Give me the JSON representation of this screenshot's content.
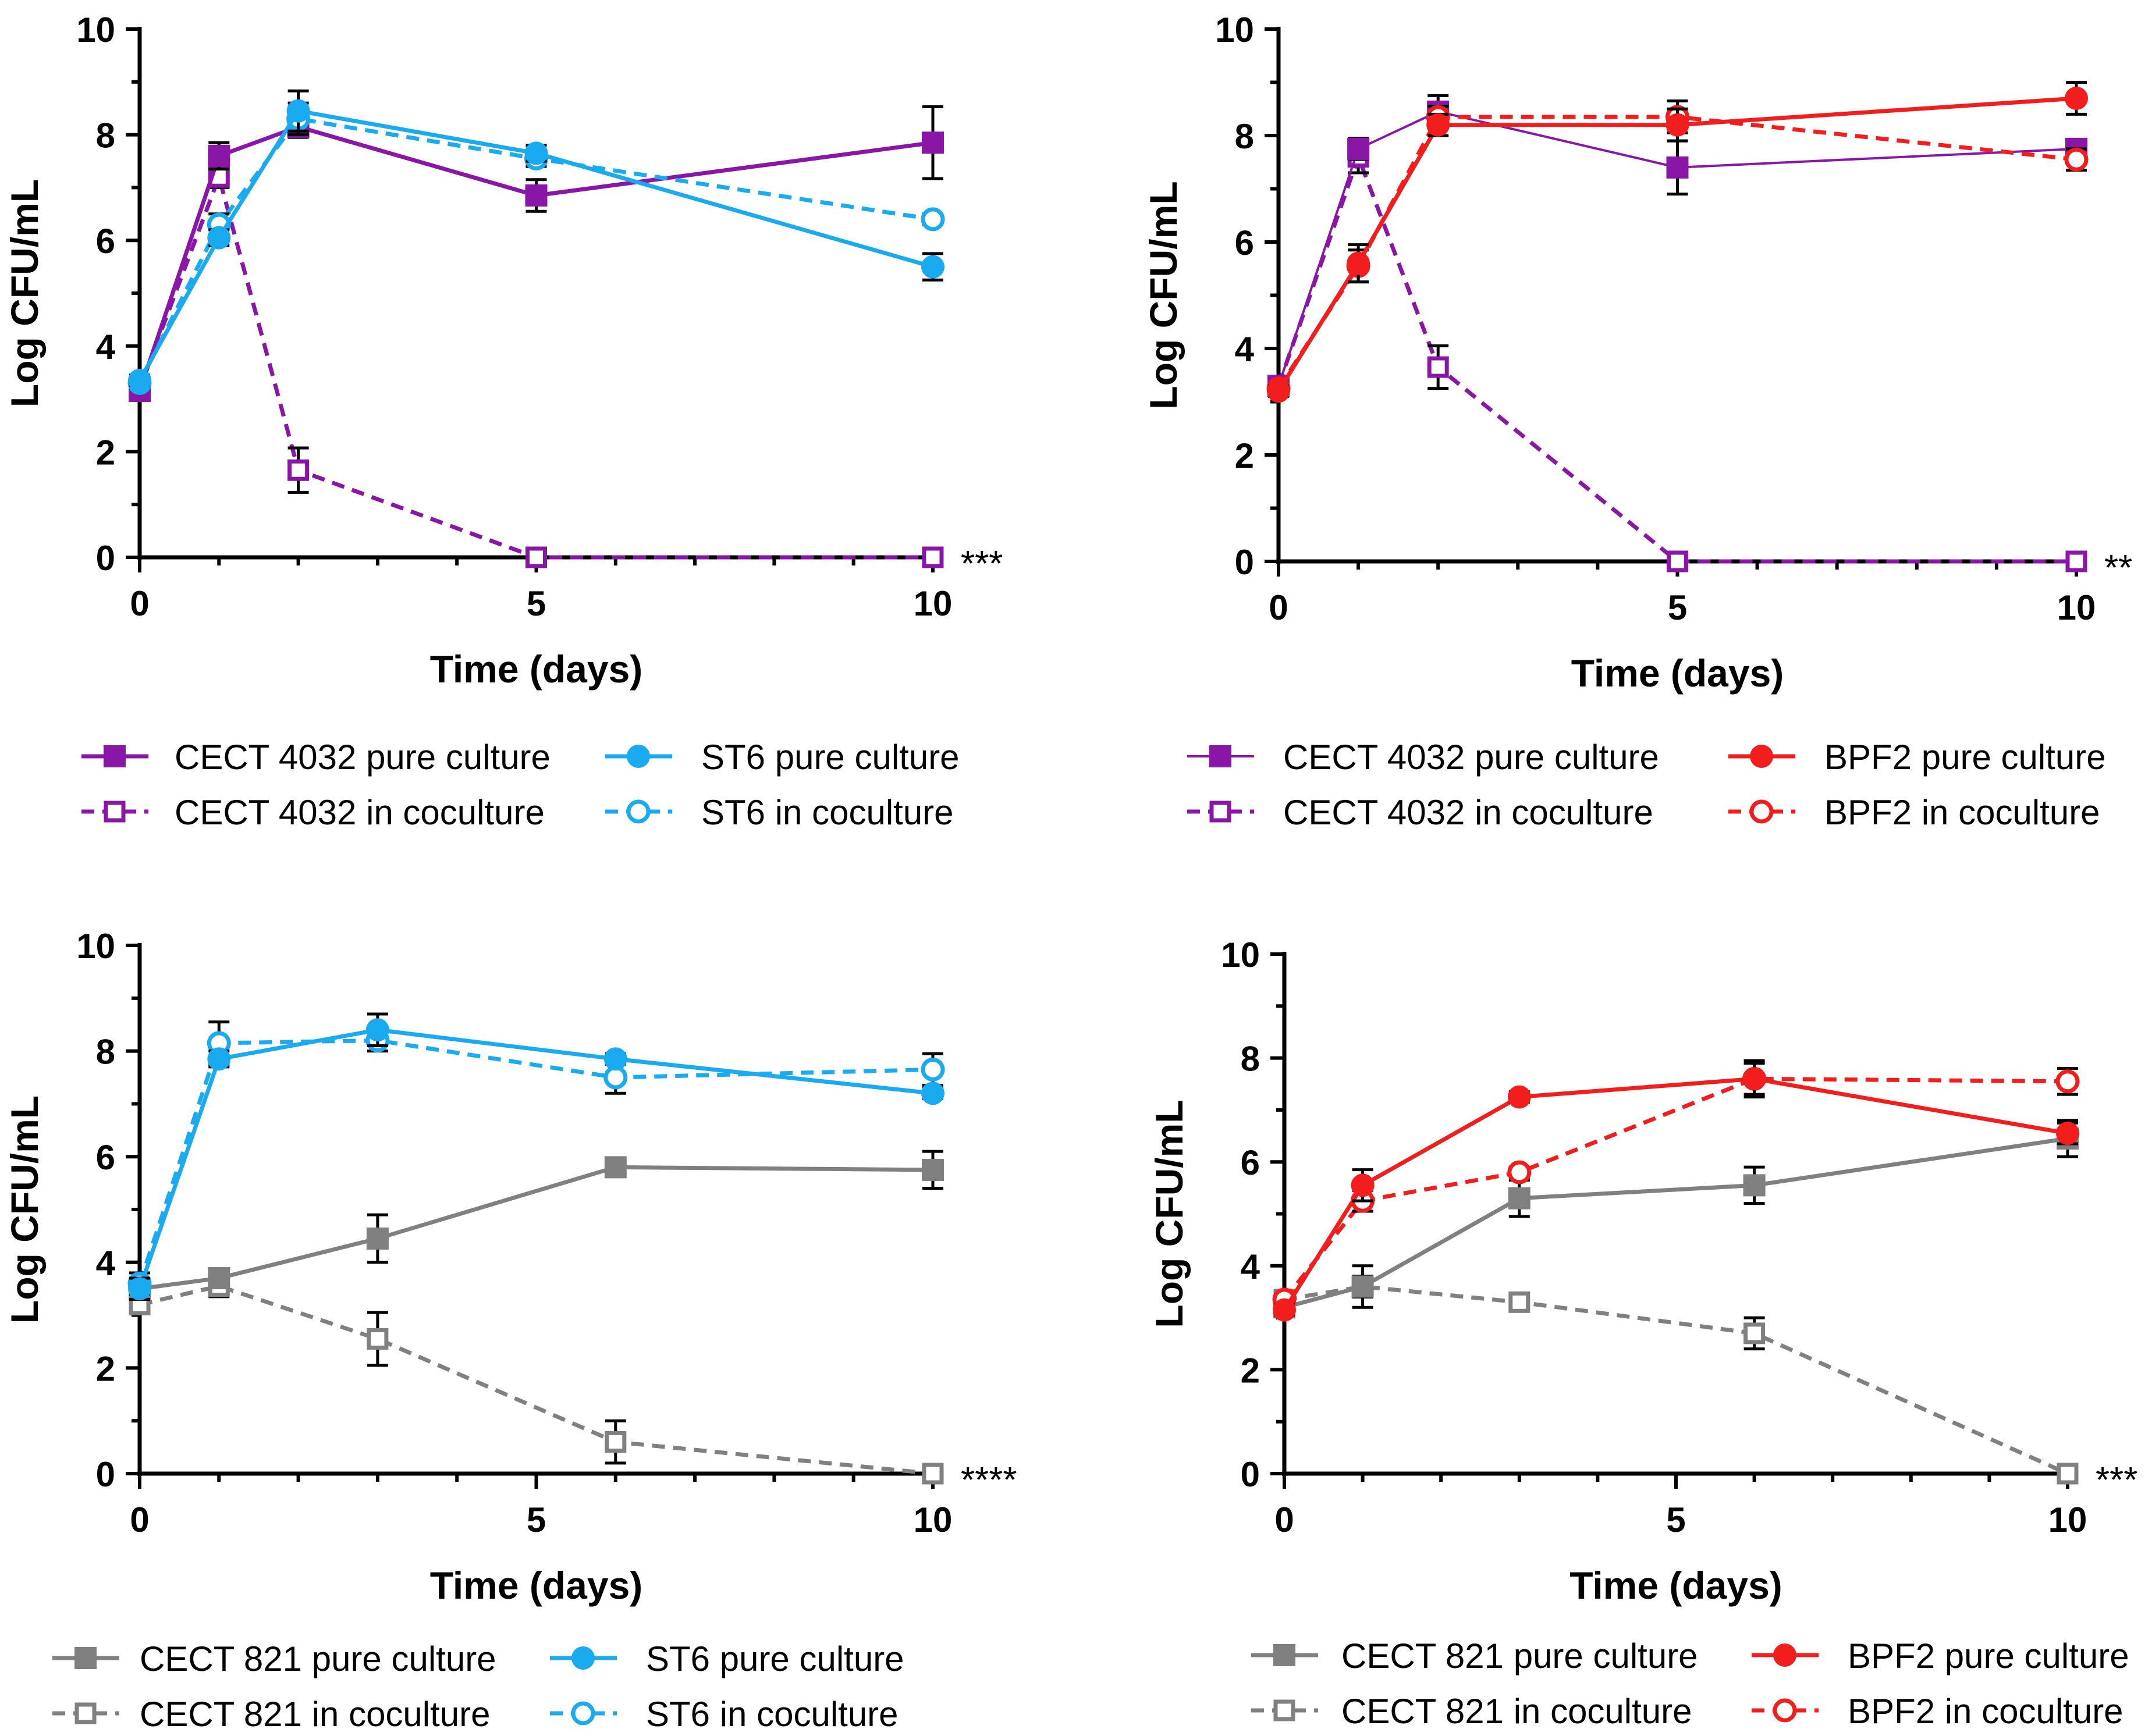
{
  "colors": {
    "purple": "#8A16A8",
    "blue": "#1AAAF0",
    "red": "#F21D1D",
    "gray": "#808080",
    "axis": "#000000",
    "errorbar": "#000000"
  },
  "chart_data": [
    {
      "id": "panel-a",
      "type": "line",
      "xlabel": "Time (days)",
      "ylabel": "Log CFU/mL",
      "xlim": [
        0,
        10
      ],
      "ylim": [
        0,
        10
      ],
      "x_ticks": [
        "0",
        "5",
        "10"
      ],
      "y_ticks": [
        "0",
        "2",
        "4",
        "6",
        "8",
        "10"
      ],
      "significance": "***",
      "series": [
        {
          "name": "CECT 4032 pure culture",
          "color": "purple",
          "dashed": false,
          "marker": "square",
          "filled": true,
          "thin": false,
          "x": [
            0,
            1,
            2,
            5,
            10
          ],
          "y": [
            3.15,
            7.6,
            8.15,
            6.85,
            7.85
          ],
          "err": [
            0.1,
            0.25,
            0.2,
            0.3,
            0.68
          ]
        },
        {
          "name": "CECT 4032 in coculture",
          "color": "purple",
          "dashed": true,
          "marker": "square",
          "filled": false,
          "thin": false,
          "x": [
            0,
            1,
            2,
            5,
            10
          ],
          "y": [
            3.2,
            7.2,
            1.65,
            0.0,
            0.0
          ],
          "err": [
            0.1,
            0.2,
            0.42,
            0.0,
            0.0
          ]
        },
        {
          "name": "ST6 pure culture",
          "color": "blue",
          "dashed": false,
          "marker": "circle",
          "filled": true,
          "thin": false,
          "x": [
            0,
            1,
            2,
            5,
            10
          ],
          "y": [
            3.35,
            6.05,
            8.45,
            7.65,
            5.5
          ],
          "err": [
            0.1,
            0.15,
            0.38,
            0.15,
            0.25
          ]
        },
        {
          "name": "ST6 in coculture",
          "color": "blue",
          "dashed": true,
          "marker": "circle",
          "filled": false,
          "thin": false,
          "x": [
            0,
            1,
            2,
            5,
            10
          ],
          "y": [
            3.3,
            6.3,
            8.3,
            7.55,
            6.4
          ],
          "err": [
            0.1,
            0.2,
            0.3,
            0.15,
            0.1
          ]
        }
      ],
      "legend": {
        "col1": [
          "CECT 4032 pure culture",
          "CECT 4032 in coculture"
        ],
        "col2": [
          "ST6 pure culture",
          "ST6 in coculture"
        ]
      }
    },
    {
      "id": "panel-b",
      "type": "line",
      "xlabel": "Time (days)",
      "ylabel": "Log CFU/mL",
      "xlim": [
        0,
        10
      ],
      "ylim": [
        0,
        10
      ],
      "x_ticks": [
        "0",
        "5",
        "10"
      ],
      "y_ticks": [
        "0",
        "2",
        "4",
        "6",
        "8",
        "10"
      ],
      "significance": "**",
      "series": [
        {
          "name": "CECT 4032 pure culture",
          "color": "purple",
          "dashed": false,
          "marker": "square",
          "filled": true,
          "thin": true,
          "x": [
            0,
            1,
            2,
            5,
            10
          ],
          "y": [
            3.3,
            7.75,
            8.45,
            7.4,
            7.75
          ],
          "err": [
            0.1,
            0.2,
            0.3,
            0.5,
            0.15
          ]
        },
        {
          "name": "CECT 4032 in coculture",
          "color": "purple",
          "dashed": true,
          "marker": "square",
          "filled": false,
          "thin": false,
          "x": [
            0,
            1,
            2,
            5,
            10
          ],
          "y": [
            3.3,
            7.6,
            3.65,
            0.0,
            0.0
          ],
          "err": [
            0.1,
            0.3,
            0.4,
            0.0,
            0.0
          ]
        },
        {
          "name": "BPF2 pure culture",
          "color": "red",
          "dashed": false,
          "marker": "circle",
          "filled": true,
          "thin": false,
          "x": [
            0,
            1,
            2,
            5,
            10
          ],
          "y": [
            3.2,
            5.6,
            8.2,
            8.2,
            8.7
          ],
          "err": [
            0.1,
            0.35,
            0.2,
            0.3,
            0.3
          ]
        },
        {
          "name": "BPF2 in coculture",
          "color": "red",
          "dashed": true,
          "marker": "circle",
          "filled": false,
          "thin": false,
          "x": [
            0,
            1,
            2,
            5,
            10
          ],
          "y": [
            3.25,
            5.55,
            8.35,
            8.35,
            7.55
          ],
          "err": [
            0.1,
            0.3,
            0.2,
            0.3,
            0.2
          ]
        }
      ],
      "legend": {
        "col1": [
          "CECT 4032 pure culture",
          "CECT 4032 in coculture"
        ],
        "col2": [
          "BPF2 pure culture",
          "BPF2 in coculture"
        ]
      }
    },
    {
      "id": "panel-c",
      "type": "line",
      "xlabel": "Time (days)",
      "ylabel": "Log CFU/mL",
      "xlim": [
        0,
        10
      ],
      "ylim": [
        0,
        10
      ],
      "x_ticks": [
        "0",
        "5",
        "10"
      ],
      "y_ticks": [
        "0",
        "2",
        "4",
        "6",
        "8",
        "10"
      ],
      "significance": "****",
      "series": [
        {
          "name": "CECT 821 pure culture",
          "color": "gray",
          "dashed": false,
          "marker": "square",
          "filled": true,
          "thin": false,
          "x": [
            0,
            1,
            3,
            6,
            10
          ],
          "y": [
            3.5,
            3.7,
            4.45,
            5.8,
            5.75
          ],
          "err": [
            0.2,
            0.15,
            0.45,
            0.15,
            0.35
          ]
        },
        {
          "name": "CECT 821 in coculture",
          "color": "gray",
          "dashed": true,
          "marker": "square",
          "filled": false,
          "thin": false,
          "x": [
            0,
            1,
            3,
            6,
            10
          ],
          "y": [
            3.2,
            3.55,
            2.55,
            0.6,
            0.0
          ],
          "err": [
            0.15,
            0.2,
            0.5,
            0.4,
            0.0
          ]
        },
        {
          "name": "ST6 pure culture",
          "color": "blue",
          "dashed": false,
          "marker": "circle",
          "filled": true,
          "thin": false,
          "x": [
            0,
            1,
            3,
            6,
            10
          ],
          "y": [
            3.5,
            7.85,
            8.4,
            7.85,
            7.2
          ],
          "err": [
            0.2,
            0.15,
            0.3,
            0.1,
            0.1
          ]
        },
        {
          "name": "ST6 in coculture",
          "color": "blue",
          "dashed": true,
          "marker": "circle",
          "filled": false,
          "thin": false,
          "x": [
            0,
            1,
            3,
            6,
            10
          ],
          "y": [
            3.6,
            8.15,
            8.2,
            7.5,
            7.65
          ],
          "err": [
            0.2,
            0.4,
            0.2,
            0.3,
            0.3
          ]
        }
      ],
      "legend": {
        "col1": [
          "CECT 821 pure culture",
          "CECT 821 in coculture"
        ],
        "col2": [
          "ST6 pure culture",
          "ST6 in coculture"
        ]
      }
    },
    {
      "id": "panel-d",
      "type": "line",
      "xlabel": "Time (days)",
      "ylabel": "Log CFU/mL",
      "xlim": [
        0,
        10
      ],
      "ylim": [
        0,
        10
      ],
      "x_ticks": [
        "0",
        "5",
        "10"
      ],
      "y_ticks": [
        "0",
        "2",
        "4",
        "6",
        "8",
        "10"
      ],
      "significance": "***",
      "series": [
        {
          "name": "CECT 821 pure culture",
          "color": "gray",
          "dashed": false,
          "marker": "square",
          "filled": true,
          "thin": false,
          "x": [
            0,
            1,
            3,
            6,
            10
          ],
          "y": [
            3.2,
            3.6,
            5.3,
            5.55,
            6.45
          ],
          "err": [
            0.1,
            0.4,
            0.35,
            0.35,
            0.35
          ]
        },
        {
          "name": "CECT 821 in coculture",
          "color": "gray",
          "dashed": true,
          "marker": "square",
          "filled": false,
          "thin": false,
          "x": [
            0,
            1,
            3,
            6,
            10
          ],
          "y": [
            3.35,
            3.6,
            3.3,
            2.7,
            0.0
          ],
          "err": [
            0.1,
            0.2,
            0.15,
            0.3,
            0.0
          ]
        },
        {
          "name": "BPF2 pure culture",
          "color": "red",
          "dashed": false,
          "marker": "circle",
          "filled": true,
          "thin": false,
          "x": [
            0,
            1,
            3,
            6,
            10
          ],
          "y": [
            3.15,
            5.55,
            7.25,
            7.6,
            6.55
          ],
          "err": [
            0.1,
            0.3,
            0.1,
            0.35,
            0.2
          ]
        },
        {
          "name": "BPF2 in coculture",
          "color": "red",
          "dashed": true,
          "marker": "circle",
          "filled": false,
          "thin": false,
          "x": [
            0,
            1,
            3,
            6,
            10
          ],
          "y": [
            3.35,
            5.25,
            5.8,
            7.6,
            7.55
          ],
          "err": [
            0.1,
            0.2,
            0.1,
            0.3,
            0.25
          ]
        }
      ],
      "legend": {
        "col1": [
          "CECT 821 pure culture",
          "CECT 821 in coculture"
        ],
        "col2": [
          "BPF2 pure culture",
          "BPF2 in coculture"
        ]
      }
    }
  ]
}
